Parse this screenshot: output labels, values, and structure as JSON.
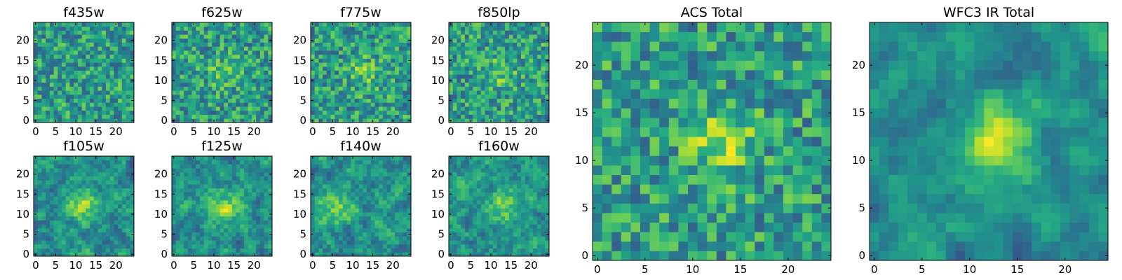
{
  "chart_data": [
    {
      "type": "heatmap",
      "title": "f435w",
      "xlim": [
        0,
        24
      ],
      "ylim": [
        0,
        24
      ],
      "xticks": [
        0,
        5,
        10,
        15,
        20
      ],
      "yticks": [
        0,
        5,
        10,
        15,
        20
      ],
      "xtick_labels": [
        "0",
        "5",
        "10",
        "15",
        "20"
      ],
      "ytick_labels": [
        "0",
        "5",
        "10",
        "15",
        "20"
      ],
      "grid_size": [
        25,
        25
      ],
      "center": [],
      "blob_sigma": 0,
      "blob_peak": 0,
      "base": 0.55,
      "noise": 0.25,
      "smooth": 0,
      "seed": 11
    },
    {
      "type": "heatmap",
      "title": "f625w",
      "xlim": [
        0,
        24
      ],
      "ylim": [
        0,
        24
      ],
      "xticks": [
        0,
        5,
        10,
        15,
        20
      ],
      "yticks": [
        0,
        5,
        10,
        15,
        20
      ],
      "xtick_labels": [
        "0",
        "5",
        "10",
        "15",
        "20"
      ],
      "ytick_labels": [
        "0",
        "5",
        "10",
        "15",
        "20"
      ],
      "grid_size": [
        25,
        25
      ],
      "center": [
        13,
        12
      ],
      "blob_sigma": 2.5,
      "blob_peak": 0.2,
      "base": 0.55,
      "noise": 0.25,
      "smooth": 0,
      "seed": 23
    },
    {
      "type": "heatmap",
      "title": "f775w",
      "xlim": [
        0,
        24
      ],
      "ylim": [
        0,
        24
      ],
      "xticks": [
        0,
        5,
        10,
        15,
        20
      ],
      "yticks": [
        0,
        5,
        10,
        15,
        20
      ],
      "xtick_labels": [
        "0",
        "5",
        "10",
        "15",
        "20"
      ],
      "ytick_labels": [
        "0",
        "5",
        "10",
        "15",
        "20"
      ],
      "grid_size": [
        25,
        25
      ],
      "center": [
        13,
        12
      ],
      "blob_sigma": 2.5,
      "blob_peak": 0.2,
      "base": 0.55,
      "noise": 0.25,
      "smooth": 0,
      "seed": 37
    },
    {
      "type": "heatmap",
      "title": "f850lp",
      "xlim": [
        0,
        24
      ],
      "ylim": [
        0,
        24
      ],
      "xticks": [
        0,
        5,
        10,
        15,
        20
      ],
      "yticks": [
        0,
        5,
        10,
        15,
        20
      ],
      "xtick_labels": [
        "0",
        "5",
        "10",
        "15",
        "20"
      ],
      "ytick_labels": [
        "0",
        "5",
        "10",
        "15",
        "20"
      ],
      "grid_size": [
        25,
        25
      ],
      "center": [
        13,
        12
      ],
      "blob_sigma": 2.5,
      "blob_peak": 0.2,
      "base": 0.55,
      "noise": 0.25,
      "smooth": 0,
      "seed": 41
    },
    {
      "type": "heatmap",
      "title": "f105w",
      "xlim": [
        0,
        24
      ],
      "ylim": [
        0,
        24
      ],
      "xticks": [
        0,
        5,
        10,
        15,
        20
      ],
      "yticks": [
        0,
        5,
        10,
        15,
        20
      ],
      "xtick_labels": [
        "0",
        "5",
        "10",
        "15",
        "20"
      ],
      "ytick_labels": [
        "0",
        "5",
        "10",
        "15",
        "20"
      ],
      "grid_size": [
        25,
        25
      ],
      "center": [
        12,
        12
      ],
      "blob_sigma": 3,
      "blob_peak": 0.3,
      "base": 0.5,
      "noise": 0.25,
      "smooth": 0.5,
      "seed": 53
    },
    {
      "type": "heatmap",
      "title": "f125w",
      "xlim": [
        0,
        24
      ],
      "ylim": [
        0,
        24
      ],
      "xticks": [
        0,
        5,
        10,
        15,
        20
      ],
      "yticks": [
        0,
        5,
        10,
        15,
        20
      ],
      "xtick_labels": [
        "0",
        "5",
        "10",
        "15",
        "20"
      ],
      "ytick_labels": [
        "0",
        "5",
        "10",
        "15",
        "20"
      ],
      "grid_size": [
        25,
        25
      ],
      "center": [
        13,
        12
      ],
      "blob_sigma": 3,
      "blob_peak": 0.3,
      "base": 0.5,
      "noise": 0.25,
      "smooth": 0.5,
      "seed": 67
    },
    {
      "type": "heatmap",
      "title": "f140w",
      "xlim": [
        0,
        24
      ],
      "ylim": [
        0,
        24
      ],
      "xticks": [
        0,
        5,
        10,
        15,
        20
      ],
      "yticks": [
        0,
        5,
        10,
        15,
        20
      ],
      "xtick_labels": [
        "0",
        "5",
        "10",
        "15",
        "20"
      ],
      "ytick_labels": [
        "0",
        "5",
        "10",
        "15",
        "20"
      ],
      "grid_size": [
        25,
        25
      ],
      "center": [
        6,
        11
      ],
      "blob_sigma": 3,
      "blob_peak": 0.3,
      "base": 0.5,
      "noise": 0.25,
      "smooth": 0.5,
      "seed": 79
    },
    {
      "type": "heatmap",
      "title": "f160w",
      "xlim": [
        0,
        24
      ],
      "ylim": [
        0,
        24
      ],
      "xticks": [
        0,
        5,
        10,
        15,
        20
      ],
      "yticks": [
        0,
        5,
        10,
        15,
        20
      ],
      "xtick_labels": [
        "0",
        "5",
        "10",
        "15",
        "20"
      ],
      "ytick_labels": [
        "0",
        "5",
        "10",
        "15",
        "20"
      ],
      "grid_size": [
        25,
        25
      ],
      "center": [
        14,
        12
      ],
      "blob_sigma": 3,
      "blob_peak": 0.3,
      "base": 0.5,
      "noise": 0.25,
      "smooth": 0.5,
      "seed": 83
    },
    {
      "type": "heatmap",
      "title": "ACS Total",
      "xlim": [
        0,
        24
      ],
      "ylim": [
        0,
        24
      ],
      "xticks": [
        0,
        5,
        10,
        15,
        20
      ],
      "yticks": [
        0,
        5,
        10,
        15,
        20
      ],
      "xtick_labels": [
        "0",
        "5",
        "10",
        "15",
        "20"
      ],
      "ytick_labels": [
        "0",
        "5",
        "10",
        "15",
        "20"
      ],
      "grid_size": [
        25,
        25
      ],
      "center": [
        13,
        12
      ],
      "blob_sigma": 2.5,
      "blob_peak": 0.3,
      "base": 0.55,
      "noise": 0.25,
      "smooth": 0,
      "seed": 97
    },
    {
      "type": "heatmap",
      "title": "WFC3 IR Total",
      "xlim": [
        0,
        24
      ],
      "ylim": [
        0,
        24
      ],
      "xticks": [
        0,
        5,
        10,
        15,
        20
      ],
      "yticks": [
        0,
        5,
        10,
        15,
        20
      ],
      "xtick_labels": [
        "0",
        "5",
        "10",
        "15",
        "20"
      ],
      "ytick_labels": [
        "0",
        "5",
        "10",
        "15",
        "20"
      ],
      "grid_size": [
        25,
        25
      ],
      "center": [
        13,
        12.5
      ],
      "blob_sigma": 3,
      "blob_peak": 0.35,
      "base": 0.5,
      "noise": 0.22,
      "smooth": 0.7,
      "seed": 101
    }
  ],
  "colormap": [
    "#440154",
    "#472c7a",
    "#3b518b",
    "#2c718e",
    "#21908d",
    "#27ad81",
    "#5cc863",
    "#aadc32",
    "#fde725"
  ],
  "axes_color": "#000000"
}
